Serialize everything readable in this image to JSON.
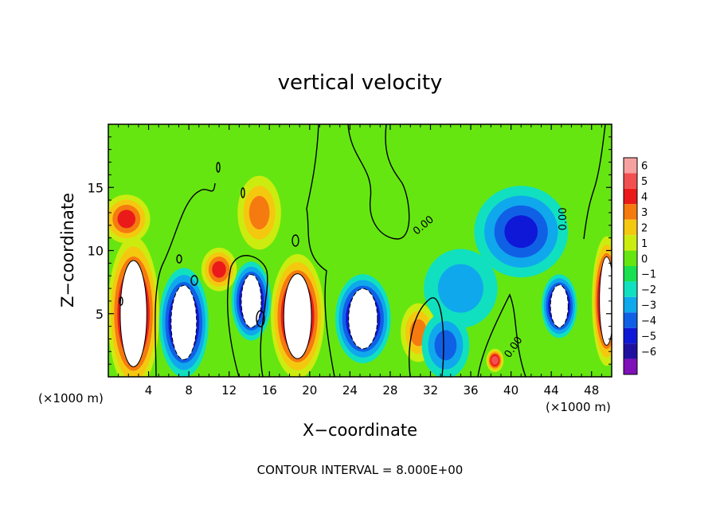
{
  "chart_data": {
    "type": "heatmap",
    "title": "vertical velocity",
    "xlabel": "X−coordinate",
    "ylabel": "Z−coordinate",
    "x_unit_left": "(×1000 m)",
    "x_unit_right": "(×1000 m)",
    "footer": "CONTOUR INTERVAL = 8.000E+00",
    "xlim": [
      0,
      50
    ],
    "ylim": [
      0,
      20
    ],
    "x_ticks": [
      4,
      8,
      12,
      16,
      20,
      24,
      28,
      32,
      36,
      40,
      44,
      48
    ],
    "y_ticks": [
      5,
      10,
      15
    ],
    "colorbar": {
      "levels": [
        "6",
        "5",
        "4",
        "3",
        "2",
        "1",
        "0",
        "−1",
        "−2",
        "−3",
        "−4",
        "−5",
        "−6"
      ],
      "colors": [
        "#f7a0a0",
        "#f25050",
        "#ea1a1a",
        "#f57a10",
        "#f5c810",
        "#ccec10",
        "#66e610",
        "#18e050",
        "#10e0c0",
        "#10a8ec",
        "#1060e6",
        "#1018d8",
        "#2010a0",
        "#8010b8"
      ]
    },
    "contour_labels": [
      {
        "text": "0.00",
        "x": 31.5,
        "y": 11.8,
        "rotate": -40
      },
      {
        "text": "0.00",
        "x": 45.5,
        "y": 12.5,
        "rotate": -90
      },
      {
        "text": "0.00",
        "x": 40.5,
        "y": 2.2,
        "rotate": -55
      }
    ],
    "features": [
      {
        "kind": "updraft",
        "x": 2.5,
        "y": 5.0,
        "rx": 2.4,
        "ry": 6.0,
        "value": 8
      },
      {
        "kind": "downdraft",
        "x": 7.5,
        "y": 4.3,
        "rx": 2.3,
        "ry": 4.2,
        "value": -8
      },
      {
        "kind": "downdraft",
        "x": 14.2,
        "y": 6.0,
        "rx": 1.8,
        "ry": 3.0,
        "value": -7
      },
      {
        "kind": "updraft",
        "x": 18.8,
        "y": 4.8,
        "rx": 2.5,
        "ry": 4.8,
        "value": 8
      },
      {
        "kind": "downdraft",
        "x": 25.3,
        "y": 4.6,
        "rx": 2.6,
        "ry": 3.4,
        "value": -8
      },
      {
        "kind": "downdraft",
        "x": 44.8,
        "y": 5.6,
        "rx": 1.6,
        "ry": 2.4,
        "value": -7
      },
      {
        "kind": "updraft",
        "x": 49.5,
        "y": 6.0,
        "rx": 1.3,
        "ry": 5.0,
        "value": 7
      },
      {
        "kind": "updraft",
        "x": 30.8,
        "y": 3.5,
        "rx": 1.6,
        "ry": 2.2,
        "value": 3
      },
      {
        "kind": "updraft",
        "x": 38.4,
        "y": 1.3,
        "rx": 0.7,
        "ry": 0.8,
        "value": 5
      },
      {
        "kind": "updraft",
        "x": 1.8,
        "y": 12.5,
        "rx": 2.2,
        "ry": 1.8,
        "value": 4
      },
      {
        "kind": "updraft",
        "x": 11.0,
        "y": 8.5,
        "rx": 1.6,
        "ry": 1.6,
        "value": 4
      },
      {
        "kind": "updraft",
        "x": 15.0,
        "y": 13.0,
        "rx": 2.0,
        "ry": 2.8,
        "value": 2.5
      },
      {
        "kind": "downdraft",
        "x": 41.0,
        "y": 11.5,
        "rx": 4.5,
        "ry": 3.5,
        "value": -4
      },
      {
        "kind": "downdraft",
        "x": 35.0,
        "y": 7.0,
        "rx": 3.5,
        "ry": 3.0,
        "value": -1.8
      },
      {
        "kind": "downdraft",
        "x": 33.5,
        "y": 2.5,
        "rx": 2.2,
        "ry": 2.5,
        "value": -3
      }
    ]
  }
}
